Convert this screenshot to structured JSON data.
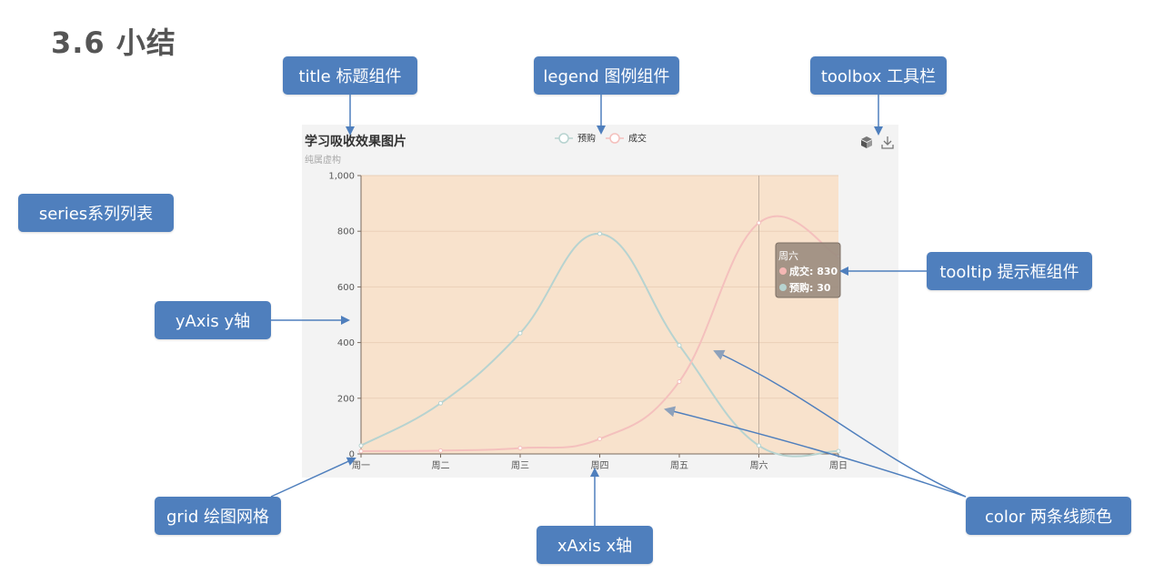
{
  "slide": {
    "title": "3.6 小结"
  },
  "callouts": {
    "title": "title 标题组件",
    "legend": "legend 图例组件",
    "toolbox": "toolbox 工具栏",
    "series": "series系列列表",
    "yaxis": "yAxis y轴",
    "tooltip": "tooltip 提示框组件",
    "grid": "grid 绘图网格",
    "xaxis": "xAxis x轴",
    "color": "color 两条线颜色"
  },
  "toolbox": {
    "icons": [
      "3d-box-icon",
      "download-icon"
    ]
  },
  "tooltip": {
    "title": "周六",
    "rows": [
      {
        "label": "成交: 830",
        "color": "#f4b7b4"
      },
      {
        "label": "预购: 30",
        "color": "#b7d3d0"
      }
    ]
  },
  "chart_data": {
    "type": "line",
    "title": "学习吸收效果图片",
    "subtitle": "纯属虚构",
    "categories": [
      "周一",
      "周二",
      "周三",
      "周四",
      "周五",
      "周六",
      "周日"
    ],
    "yticks": [
      "0",
      "200",
      "400",
      "600",
      "800",
      "1,000"
    ],
    "ylim": [
      0,
      1000
    ],
    "series": [
      {
        "name": "预购",
        "values": [
          30,
          182,
          434,
          791,
          390,
          30,
          10
        ],
        "color": "#b7d3d0",
        "smooth": true
      },
      {
        "name": "成交",
        "values": [
          10,
          12,
          21,
          54,
          260,
          830,
          710
        ],
        "color": "#f4c0bd",
        "smooth": true
      }
    ],
    "plot_background": "#f8e2cc",
    "panel_background": "#f3f3f3",
    "grid": true,
    "legend_position": "top-center",
    "hover_category": "周六"
  }
}
